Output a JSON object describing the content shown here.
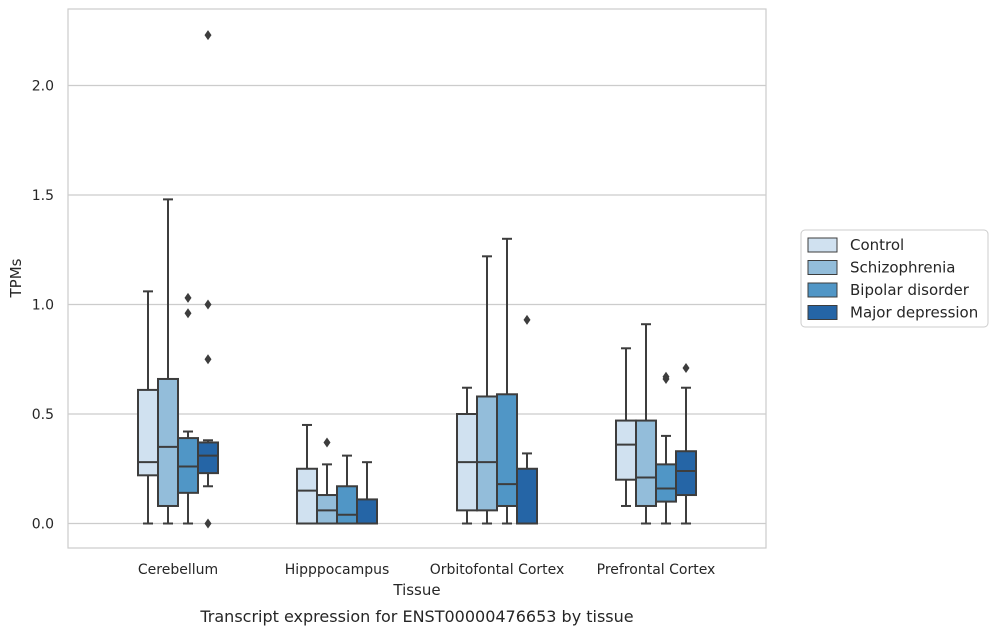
{
  "chart_data": {
    "type": "box",
    "xlabel": "Tissue",
    "ylabel": "TPMs",
    "caption": "Transcript expression for ENST00000476653 by tissue",
    "ylim": [
      -0.11,
      2.36
    ],
    "yticks": [
      0.0,
      0.5,
      1.0,
      1.5,
      2.0
    ],
    "ytick_labels": [
      "0.0",
      "0.5",
      "1.0",
      "1.5",
      "2.0"
    ],
    "grid": "horizontal",
    "legend_position": "right",
    "categories": [
      "Cerebellum",
      "Hipppocampus",
      "Orbitofontal Cortex",
      "Prefrontal Cortex"
    ],
    "series": [
      {
        "name": "Control",
        "color": "#d0e1f0",
        "boxes": [
          {
            "min": 0.0,
            "q1": 0.22,
            "median": 0.28,
            "q3": 0.61,
            "max": 1.06,
            "outliers": []
          },
          {
            "min": 0.0,
            "q1": 0.0,
            "median": 0.15,
            "q3": 0.25,
            "max": 0.45,
            "outliers": []
          },
          {
            "min": 0.0,
            "q1": 0.06,
            "median": 0.28,
            "q3": 0.5,
            "max": 0.62,
            "outliers": []
          },
          {
            "min": 0.08,
            "q1": 0.2,
            "median": 0.36,
            "q3": 0.47,
            "max": 0.8,
            "outliers": []
          }
        ]
      },
      {
        "name": "Schizophrenia",
        "color": "#93bdda",
        "boxes": [
          {
            "min": 0.0,
            "q1": 0.08,
            "median": 0.35,
            "q3": 0.66,
            "max": 1.48,
            "outliers": []
          },
          {
            "min": 0.0,
            "q1": 0.0,
            "median": 0.06,
            "q3": 0.13,
            "max": 0.27,
            "outliers": [
              0.37
            ]
          },
          {
            "min": 0.0,
            "q1": 0.06,
            "median": 0.28,
            "q3": 0.58,
            "max": 1.22,
            "outliers": []
          },
          {
            "min": 0.0,
            "q1": 0.08,
            "median": 0.21,
            "q3": 0.47,
            "max": 0.91,
            "outliers": []
          }
        ]
      },
      {
        "name": "Bipolar disorder",
        "color": "#5096c6",
        "boxes": [
          {
            "min": 0.0,
            "q1": 0.14,
            "median": 0.26,
            "q3": 0.39,
            "max": 0.42,
            "outliers": [
              0.96,
              1.03
            ]
          },
          {
            "min": 0.0,
            "q1": 0.0,
            "median": 0.04,
            "q3": 0.17,
            "max": 0.31,
            "outliers": []
          },
          {
            "min": 0.0,
            "q1": 0.08,
            "median": 0.18,
            "q3": 0.59,
            "max": 1.3,
            "outliers": []
          },
          {
            "min": 0.0,
            "q1": 0.1,
            "median": 0.16,
            "q3": 0.27,
            "max": 0.4,
            "outliers": [
              0.66,
              0.67
            ]
          }
        ]
      },
      {
        "name": "Major depression",
        "color": "#2565a6",
        "boxes": [
          {
            "min": 0.17,
            "q1": 0.23,
            "median": 0.31,
            "q3": 0.37,
            "max": 0.38,
            "outliers": [
              0.0,
              0.75,
              1.0,
              2.23
            ]
          },
          {
            "min": 0.0,
            "q1": 0.0,
            "median": 0.0,
            "q3": 0.11,
            "max": 0.28,
            "outliers": []
          },
          {
            "min": 0.0,
            "q1": 0.0,
            "median": 0.0,
            "q3": 0.25,
            "max": 0.32,
            "outliers": [
              0.93
            ]
          },
          {
            "min": 0.0,
            "q1": 0.13,
            "median": 0.24,
            "q3": 0.33,
            "max": 0.62,
            "outliers": [
              0.71
            ]
          }
        ]
      }
    ]
  }
}
